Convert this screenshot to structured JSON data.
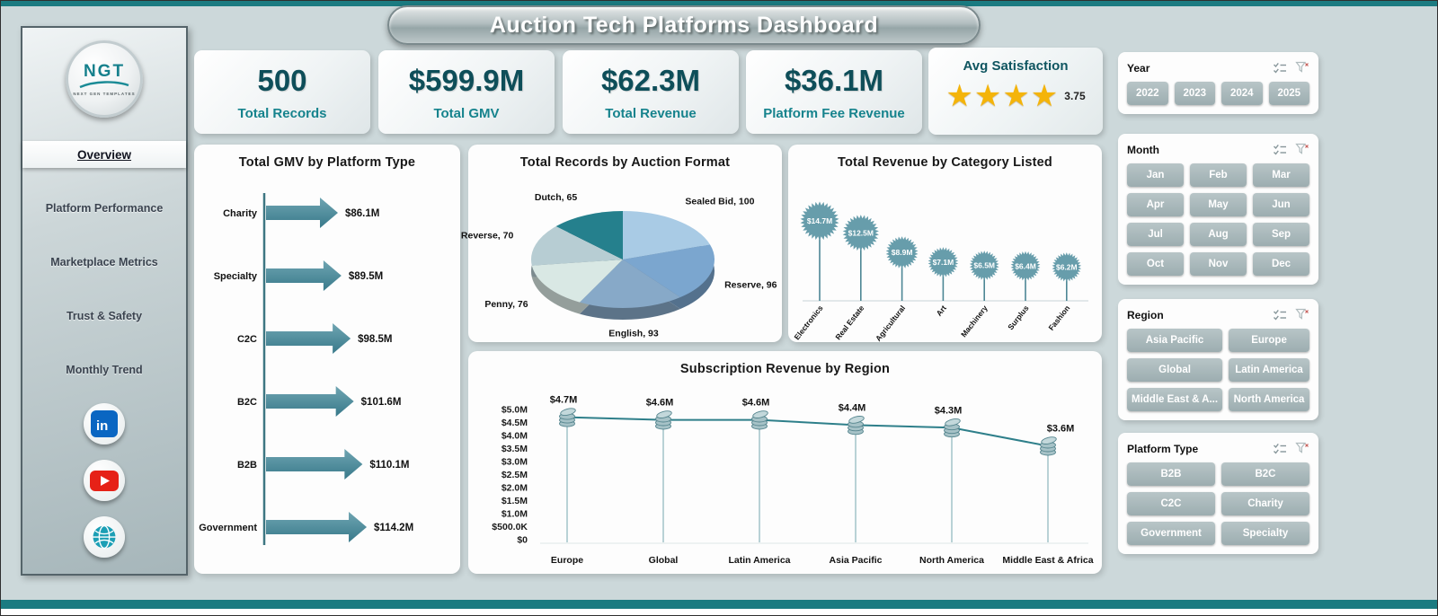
{
  "title": "Auction Tech Platforms Dashboard",
  "colors": {
    "accent_teal": "#177a84",
    "kpi_value": "#0e4e59",
    "kpi_label": "#16838d",
    "gold_star": "#f4b40a",
    "slicer_button": "#a9b8ba",
    "edge_bar": "#1b7b81"
  },
  "sidebar": {
    "logo": {
      "text": "NGT",
      "subtext": "NEXT GEN TEMPLATES"
    },
    "items": [
      {
        "label": "Overview",
        "active": true
      },
      {
        "label": "Platform Performance",
        "active": false
      },
      {
        "label": "Marketplace Metrics",
        "active": false
      },
      {
        "label": "Trust & Safety",
        "active": false
      },
      {
        "label": "Monthly Trend",
        "active": false
      }
    ],
    "social": [
      {
        "name": "linkedin"
      },
      {
        "name": "youtube"
      },
      {
        "name": "website"
      }
    ]
  },
  "kpis": [
    {
      "value": "500",
      "label": "Total Records"
    },
    {
      "value": "$599.9M",
      "label": "Total GMV"
    },
    {
      "value": "$62.3M",
      "label": "Total Revenue"
    },
    {
      "value": "$36.1M",
      "label": "Platform Fee Revenue"
    }
  ],
  "satisfaction": {
    "title": "Avg Satisfaction",
    "stars": 4,
    "value": "3.75"
  },
  "chart_data": [
    {
      "id": "gmv_by_platform_type",
      "type": "bar",
      "orientation": "horizontal",
      "title": "Total GMV by Platform Type",
      "categories": [
        "Charity",
        "Specialty",
        "C2C",
        "B2C",
        "B2B",
        "Government"
      ],
      "values": [
        86.1,
        89.5,
        98.5,
        101.6,
        110.1,
        114.2
      ],
      "labels": [
        "$86.1M",
        "$89.5M",
        "$98.5M",
        "$101.6M",
        "$110.1M",
        "$114.2M"
      ],
      "unit": "USD millions",
      "bar_color": "#4f8d9c"
    },
    {
      "id": "records_by_auction_format",
      "type": "pie",
      "title": "Total Records by Auction Format",
      "categories": [
        "Sealed Bid",
        "Reserve",
        "English",
        "Penny",
        "Reverse",
        "Dutch"
      ],
      "values": [
        100,
        96,
        93,
        76,
        70,
        65
      ],
      "labels": [
        "Sealed Bid, 100",
        "Reserve, 96",
        "English, 93",
        "Penny, 76",
        "Reverse, 70",
        "Dutch, 65"
      ],
      "colors": [
        "#a9cbe5",
        "#7ba6cf",
        "#87a9c8",
        "#d9e8e4",
        "#b7cdd3",
        "#25808d"
      ]
    },
    {
      "id": "revenue_by_category_listed",
      "type": "dandelion",
      "title": "Total Revenue by Category Listed",
      "categories": [
        "Electronics",
        "Real Estate",
        "Agricultural",
        "Art",
        "Machinery",
        "Surplus",
        "Fashion"
      ],
      "values": [
        14.7,
        12.5,
        8.9,
        7.1,
        6.5,
        6.4,
        6.2
      ],
      "labels": [
        "$14.7M",
        "$12.5M",
        "$8.9M",
        "$7.1M",
        "$6.5M",
        "$6.4M",
        "$6.2M"
      ],
      "unit": "USD millions",
      "color": "#679dab"
    },
    {
      "id": "subscription_revenue_by_region",
      "type": "line",
      "title": "Subscription Revenue by Region",
      "categories": [
        "Europe",
        "Global",
        "Latin America",
        "Asia Pacific",
        "North America",
        "Middle East & Africa"
      ],
      "values": [
        4.7,
        4.6,
        4.6,
        4.4,
        4.3,
        3.6
      ],
      "labels": [
        "$4.7M",
        "$4.6M",
        "$4.6M",
        "$4.4M",
        "$4.3M",
        "$3.6M"
      ],
      "ylim": [
        0,
        5
      ],
      "ytick_labels": [
        "$0",
        "$500.0K",
        "$1.0M",
        "$1.5M",
        "$2.0M",
        "$2.5M",
        "$3.0M",
        "$3.5M",
        "$4.0M",
        "$4.5M",
        "$5.0M"
      ],
      "unit": "USD millions",
      "line_color": "#2e7f8a"
    }
  ],
  "slicers": [
    {
      "title": "Year",
      "columns": 4,
      "options": [
        "2022",
        "2023",
        "2024",
        "2025"
      ]
    },
    {
      "title": "Month",
      "columns": 3,
      "options": [
        "Jan",
        "Feb",
        "Mar",
        "Apr",
        "May",
        "Jun",
        "Jul",
        "Aug",
        "Sep",
        "Oct",
        "Nov",
        "Dec"
      ]
    },
    {
      "title": "Region",
      "columns": 2,
      "options": [
        "Asia Pacific",
        "Europe",
        "Global",
        "Latin America",
        "Middle East & A...",
        "North America"
      ]
    },
    {
      "title": "Platform Type",
      "columns": 2,
      "options": [
        "B2B",
        "B2C",
        "C2C",
        "Charity",
        "Government",
        "Specialty"
      ]
    }
  ]
}
